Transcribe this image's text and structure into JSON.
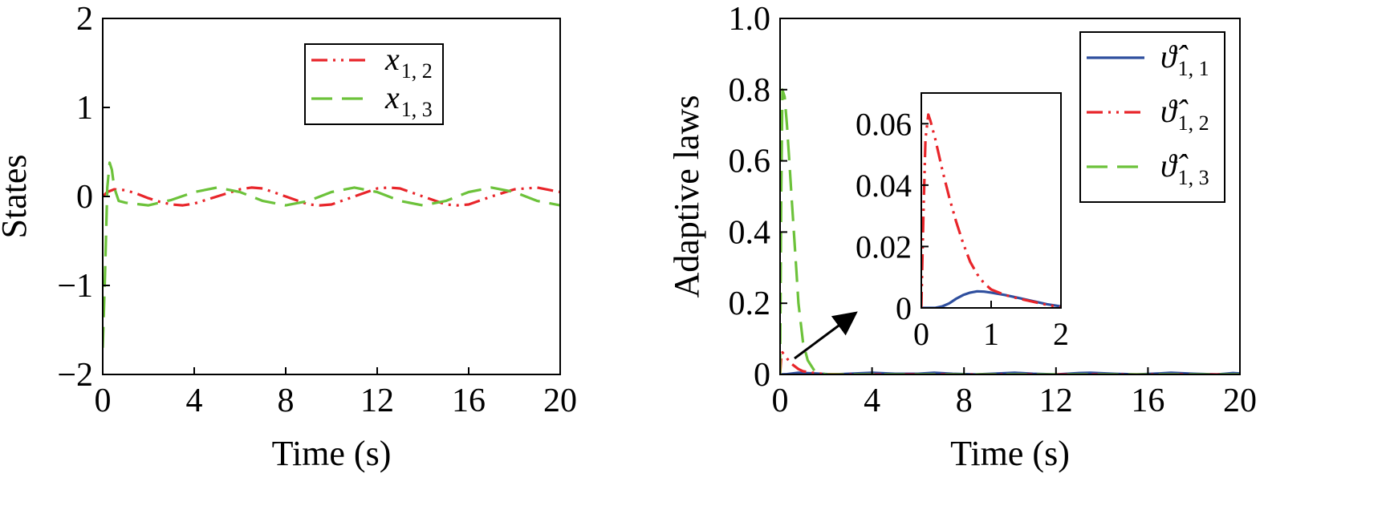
{
  "chart_data": [
    {
      "type": "line",
      "xlabel": "Time (s)",
      "ylabel": "States",
      "xlim": [
        0,
        20
      ],
      "ylim": [
        -2,
        2
      ],
      "xticks": [
        "0",
        "4",
        "8",
        "12",
        "16",
        "20"
      ],
      "yticks": [
        "−2",
        "−1",
        "0",
        "1",
        "2"
      ],
      "legend_position": "top-right",
      "series": [
        {
          "name": "x",
          "sub": "1, 2",
          "color": "#e8252a",
          "dash": "dashdotdot",
          "x": [
            0,
            0.2,
            0.5,
            1,
            1.5,
            2,
            2.5,
            3,
            3.5,
            4,
            5,
            6,
            6.5,
            7,
            8,
            9,
            9.5,
            10,
            11,
            12,
            12.5,
            13,
            14,
            15,
            15.5,
            16,
            17,
            18,
            19,
            20
          ],
          "y": [
            0,
            0.05,
            0.08,
            0.07,
            0.03,
            -0.02,
            -0.06,
            -0.09,
            -0.1,
            -0.08,
            0,
            0.08,
            0.1,
            0.09,
            0,
            -0.09,
            -0.1,
            -0.09,
            0,
            0.09,
            0.1,
            0.09,
            0,
            -0.09,
            -0.1,
            -0.09,
            0,
            0.08,
            0.1,
            0.05
          ]
        },
        {
          "name": "x",
          "sub": "1, 3",
          "color": "#6cc23a",
          "dash": "dash",
          "x": [
            0,
            0.1,
            0.2,
            0.3,
            0.4,
            0.5,
            0.7,
            1,
            2,
            3,
            4,
            5,
            6,
            7,
            8,
            9,
            10,
            11,
            12,
            13,
            14,
            15,
            16,
            17,
            18,
            19,
            20
          ],
          "y": [
            -1.7,
            -0.9,
            0.1,
            0.38,
            0.3,
            0.1,
            -0.05,
            -0.07,
            -0.1,
            -0.04,
            0.05,
            0.1,
            0.05,
            -0.05,
            -0.1,
            -0.05,
            0.05,
            0.1,
            0.05,
            -0.05,
            -0.1,
            -0.05,
            0.05,
            0.1,
            0.05,
            -0.05,
            -0.1
          ]
        }
      ]
    },
    {
      "type": "line",
      "xlabel": "Time (s)",
      "ylabel": "Adaptive laws",
      "xlim": [
        0,
        20
      ],
      "ylim": [
        0,
        1.0
      ],
      "xticks": [
        "0",
        "4",
        "8",
        "12",
        "16",
        "20"
      ],
      "yticks": [
        "0",
        "0.2",
        "0.4",
        "0.6",
        "0.8",
        "1.0"
      ],
      "legend_position": "top-right",
      "series": [
        {
          "name": "ϑ̂",
          "sub": "1, 1",
          "color": "#2f4f9e",
          "dash": "solid",
          "x": [
            0,
            0.3,
            0.8,
            1.5,
            2.3,
            3,
            4,
            5,
            6,
            6.7,
            7.5,
            8.5,
            9.5,
            10.2,
            11,
            12,
            13,
            13.5,
            14.5,
            15.5,
            16.5,
            17,
            18,
            19,
            19.7,
            20
          ],
          "y": [
            0,
            0.001,
            0.005,
            0.003,
            0,
            0.002,
            0.005,
            0.002,
            0.002,
            0.005,
            0.002,
            0,
            0.003,
            0.005,
            0.002,
            0,
            0.004,
            0.005,
            0.002,
            0,
            0.003,
            0.005,
            0.002,
            0,
            0.004,
            0.003
          ]
        },
        {
          "name": "ϑ̂",
          "sub": "1, 2",
          "color": "#e8252a",
          "dash": "dashdotdot",
          "x": [
            0,
            0.05,
            0.1,
            0.2,
            0.3,
            0.5,
            0.8,
            1,
            1.5,
            2,
            3,
            4,
            6,
            8,
            10,
            12,
            14,
            16,
            18,
            20
          ],
          "y": [
            0,
            0.045,
            0.062,
            0.055,
            0.045,
            0.03,
            0.015,
            0.009,
            0.004,
            0.001,
            0,
            0,
            0,
            0,
            0,
            0,
            0,
            0,
            0,
            0
          ]
        },
        {
          "name": "ϑ̂",
          "sub": "1, 3",
          "color": "#6cc23a",
          "dash": "dash",
          "x": [
            0,
            0.05,
            0.1,
            0.2,
            0.3,
            0.4,
            0.5,
            0.6,
            0.7,
            0.8,
            1,
            1.2,
            1.5,
            2,
            3,
            4,
            6,
            8,
            10,
            12,
            14,
            16,
            18,
            20
          ],
          "y": [
            0,
            0.5,
            0.8,
            0.78,
            0.7,
            0.6,
            0.5,
            0.4,
            0.3,
            0.2,
            0.09,
            0.04,
            0.01,
            0,
            0,
            0,
            0,
            0,
            0,
            0,
            0,
            0,
            0,
            0
          ]
        }
      ],
      "inset": {
        "xlim": [
          0,
          2
        ],
        "ylim": [
          0,
          0.07
        ],
        "xticks": [
          "0",
          "1",
          "2"
        ],
        "yticks": [
          "0",
          "0.02",
          "0.04",
          "0.06"
        ],
        "series": [
          {
            "color": "#2f4f9e",
            "dash": "solid",
            "x": [
              0,
              0.2,
              0.3,
              0.4,
              0.5,
              0.6,
              0.7,
              0.8,
              0.9,
              1.0,
              1.2,
              1.4,
              1.6,
              1.8,
              2.0
            ],
            "y": [
              0,
              0,
              0.0005,
              0.0015,
              0.003,
              0.0042,
              0.005,
              0.0054,
              0.0053,
              0.005,
              0.0042,
              0.0032,
              0.0022,
              0.0012,
              0.0005
            ]
          },
          {
            "color": "#e8252a",
            "dash": "dashdotdot",
            "x": [
              0,
              0.03,
              0.06,
              0.1,
              0.13,
              0.2,
              0.3,
              0.4,
              0.5,
              0.6,
              0.7,
              0.8,
              0.9,
              1.0,
              1.2,
              1.4,
              1.6,
              1.8,
              2.0
            ],
            "y": [
              0,
              0.03,
              0.055,
              0.063,
              0.061,
              0.055,
              0.045,
              0.036,
              0.028,
              0.021,
              0.015,
              0.011,
              0.008,
              0.006,
              0.0042,
              0.003,
              0.002,
              0.001,
              0.0002
            ]
          }
        ]
      }
    }
  ]
}
